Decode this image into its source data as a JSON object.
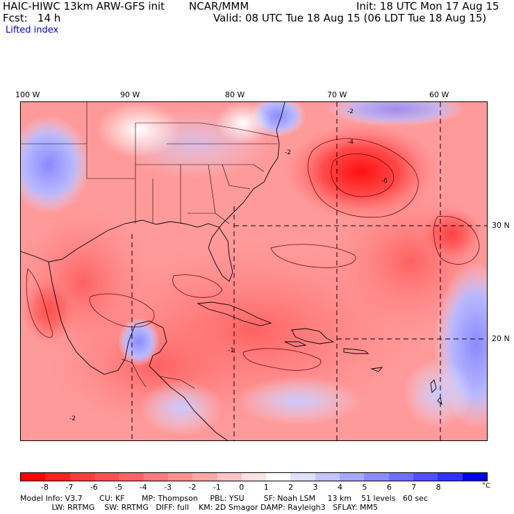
{
  "header": {
    "model_line": "HAIC-HIWC 13km ARW-GFS init",
    "org": "NCAR/MMM",
    "init": "Init: 18 UTC Mon 17 Aug 15",
    "forecast": "Fcst:   14 h",
    "valid": "Valid: 08 UTC Tue 18 Aug 15 (06 LDT Tue 18 Aug 15)",
    "field": "Lifted index"
  },
  "map": {
    "lon_labels": [
      "100 W",
      "90 W",
      "80 W",
      "70 W",
      "60 W"
    ],
    "lat_labels": [
      "30 N",
      "20 N"
    ],
    "contour_labels": [
      "-2",
      "-4",
      "-6",
      "-2",
      "-1",
      "-2"
    ],
    "colors": {
      "neg8": "#ff0000",
      "neg7": "#ff2a2a",
      "neg6": "#ff4545",
      "neg5": "#ff5e5e",
      "neg4": "#ff7878",
      "neg3": "#ff9494",
      "neg2": "#ffb0b0",
      "neg1": "#ffcccc",
      "zero": "#ffffff",
      "pos1": "#d2d2ff",
      "pos2": "#b4b4ff",
      "pos3": "#9696ff",
      "pos4": "#7878ff",
      "pos5": "#5a5aff",
      "pos6": "#3c3cff",
      "pos7": "#1e1eff",
      "pos8": "#0000ff"
    }
  },
  "colorbar": {
    "labels": [
      "-8",
      "-7",
      "-6",
      "-5",
      "-4",
      "-3",
      "-2",
      "-1",
      "0",
      "1",
      "2",
      "3",
      "4",
      "5",
      "6",
      "7",
      "8"
    ],
    "unit": "°C",
    "colors": [
      "#ff0000",
      "#ff2020",
      "#ff3c3c",
      "#ff5050",
      "#ff6464",
      "#ff7a7a",
      "#ff9090",
      "#ffa8a8",
      "#ffc4c4",
      "#ffe2e2",
      "#ffffff",
      "#e0e0ff",
      "#c4c4ff",
      "#a8a8ff",
      "#8c8cff",
      "#6e6eff",
      "#5050ff",
      "#3232ff",
      "#0000e6"
    ]
  },
  "footer": {
    "line1": "Model Info: V3.7       CU: KF       MP: Thompson     PBL: YSU        SF: Noah LSM     13 km    51 levels   60 sec",
    "line2": "             LW: RRTMG    SW: RRTMG   DIFF: full    KM: 2D Smagor DAMP: Rayleigh3   SFLAY: MM5"
  }
}
